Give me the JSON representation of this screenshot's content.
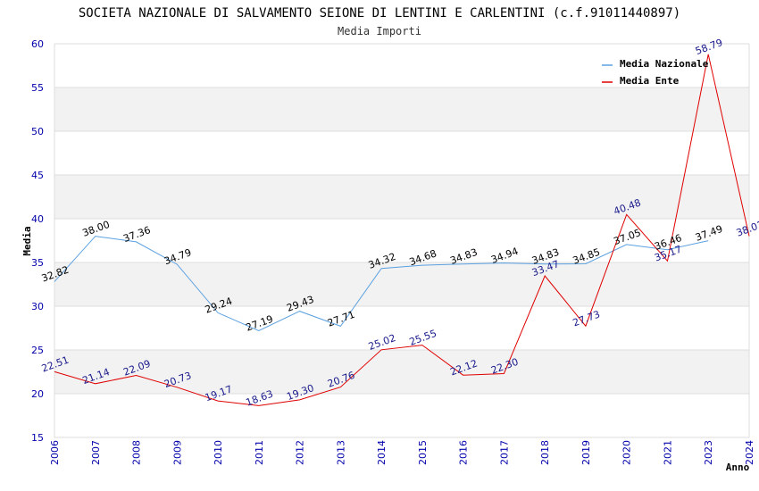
{
  "chart_data": {
    "type": "line",
    "title": "SOCIETA NAZIONALE DI SALVAMENTO SEIONE DI LENTINI E CARLENTINI (c.f.91011440897)",
    "subtitle": "Media Importi",
    "xlabel": "Anno",
    "ylabel": "Media",
    "ylim": [
      15,
      60
    ],
    "yticks": [
      15,
      20,
      25,
      30,
      35,
      40,
      45,
      50,
      55,
      60
    ],
    "categories": [
      "2006",
      "2007",
      "2008",
      "2009",
      "2010",
      "2011",
      "2012",
      "2013",
      "2014",
      "2015",
      "2016",
      "2017",
      "2018",
      "2019",
      "2020",
      "2021",
      "2023",
      "2024"
    ],
    "series": [
      {
        "name": "Media Nazionale",
        "color": "#5aa0e0",
        "values": [
          32.82,
          38.0,
          37.36,
          34.79,
          29.24,
          27.19,
          29.43,
          27.71,
          34.32,
          34.68,
          34.83,
          34.94,
          34.83,
          34.85,
          37.05,
          36.46,
          37.49,
          null
        ],
        "labels": [
          "32.82",
          "38.00",
          "37.36",
          "34.79",
          "29.24",
          "27.19",
          "29.43",
          "27.71",
          "34.32",
          "34.68",
          "34.83",
          "34.94",
          "34.83",
          "34.85",
          "37.05",
          "36.46",
          "37.49",
          ""
        ]
      },
      {
        "name": "Media Ente",
        "color": "#e00000",
        "values": [
          22.51,
          21.14,
          22.09,
          20.73,
          19.17,
          18.63,
          19.3,
          20.76,
          25.02,
          25.55,
          22.12,
          22.3,
          33.47,
          27.73,
          40.48,
          35.17,
          58.79,
          38.01
        ],
        "labels": [
          "22.51",
          "21.14",
          "22.09",
          "20.73",
          "19.17",
          "18.63",
          "19.30",
          "20.76",
          "25.02",
          "25.55",
          "22.12",
          "22.30",
          "33.47",
          "27.73",
          "40.48",
          "35.17",
          "58.79",
          "38.01"
        ]
      }
    ],
    "legend": "top-right",
    "grid": "horizontal alternating bands"
  }
}
